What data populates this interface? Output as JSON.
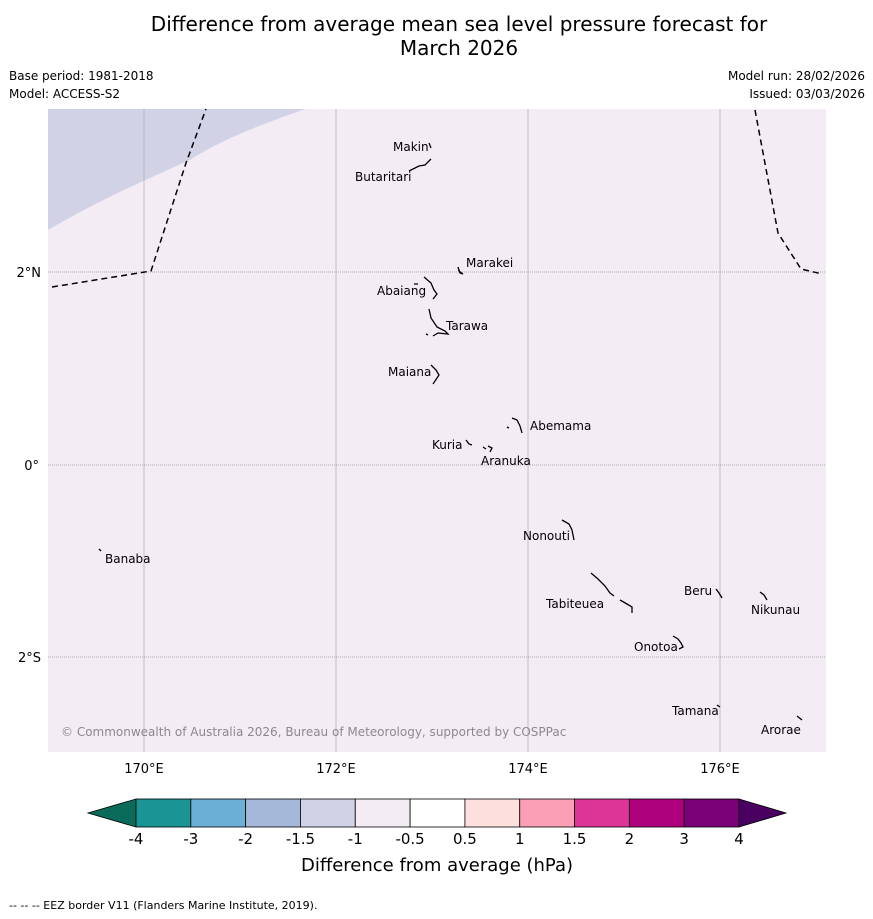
{
  "title": {
    "line1": "Difference from average mean sea level pressure forecast for",
    "line2": "March 2026"
  },
  "meta": {
    "base_period": "Base period: 1981-2018",
    "model": "Model: ACCESS-S2",
    "model_run": "Model run: 28/02/2026",
    "issued": "Issued: 03/03/2026"
  },
  "map": {
    "lat_labels": [
      "2°N",
      "0°",
      "2°S"
    ],
    "lon_labels": [
      "170°E",
      "172°E",
      "174°E",
      "176°E"
    ],
    "copyright": "© Commonwealth of Australia 2026, Bureau of Meteorology, supported by COSPPac",
    "places": [
      "Makin",
      "Butaritari",
      "Marakei",
      "Abaiang",
      "Tarawa",
      "Maiana",
      "Abemama",
      "Kuria",
      "Aranuka",
      "Nonouti",
      "Banaba",
      "Tabiteuea",
      "Beru",
      "Nikunau",
      "Onotoa",
      "Tamana",
      "Arorae"
    ],
    "colors": {
      "background_anomaly": "#f4ecf5",
      "upper_left_anomaly": "#d1d2e6",
      "border": "#000000"
    }
  },
  "colorbar": {
    "label": "Difference from average (hPa)",
    "ticks": [
      "-4",
      "-3",
      "-2",
      "-1.5",
      "-1",
      "-0.5",
      "0.5",
      "1",
      "1.5",
      "2",
      "3",
      "4"
    ],
    "colors": [
      "#1a9494",
      "#6baed6",
      "#a6b8da",
      "#d1d2e6",
      "#f4ecf5",
      "#ffffff",
      "#fde0dd",
      "#fa9fb5",
      "#dd3497",
      "#ae017e",
      "#7a0177"
    ],
    "low_extend_color": "#0a6b5a",
    "high_extend_color": "#4a0060"
  },
  "footer": "--  --  -- EEZ border V11 (Flanders Marine Institute, 2019)."
}
